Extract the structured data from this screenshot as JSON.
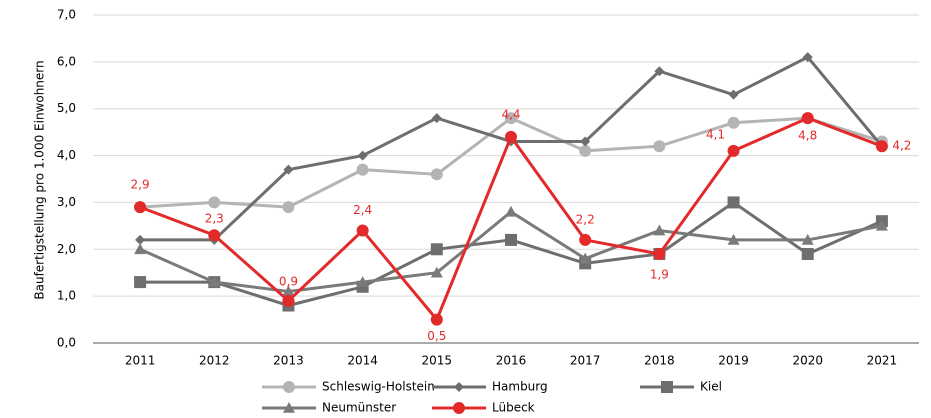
{
  "chart_data": {
    "type": "line",
    "y_label": "Baufertigstellung pro 1.000 Einwohnern",
    "categories": [
      "2011",
      "2012",
      "2013",
      "2014",
      "2015",
      "2016",
      "2017",
      "2018",
      "2019",
      "2020",
      "2021"
    ],
    "ylim": [
      0,
      7
    ],
    "yticks": [
      {
        "value": 0,
        "label": "0,0"
      },
      {
        "value": 1,
        "label": "1,0"
      },
      {
        "value": 2,
        "label": "2,0"
      },
      {
        "value": 3,
        "label": "3,0"
      },
      {
        "value": 4,
        "label": "4,0"
      },
      {
        "value": 5,
        "label": "5,0"
      },
      {
        "value": 6,
        "label": "6,0"
      },
      {
        "value": 7,
        "label": "7,0"
      }
    ],
    "grid": true,
    "series": [
      {
        "name": "Schleswig-Holstein",
        "color": "#b4b4b4",
        "marker": "circle",
        "values": [
          2.9,
          3.0,
          2.9,
          3.7,
          3.6,
          4.8,
          4.1,
          4.2,
          4.7,
          4.8,
          4.3
        ]
      },
      {
        "name": "Hamburg",
        "color": "#6e6e6e",
        "marker": "diamond",
        "values": [
          2.2,
          2.2,
          3.7,
          4.0,
          4.8,
          4.3,
          4.3,
          5.8,
          5.3,
          6.1,
          4.2
        ]
      },
      {
        "name": "Kiel",
        "color": "#6e6e6e",
        "marker": "square",
        "values": [
          1.3,
          1.3,
          0.8,
          1.2,
          2.0,
          2.2,
          1.7,
          1.9,
          3.0,
          1.9,
          2.6
        ]
      },
      {
        "name": "Neumünster",
        "color": "#7a7a7a",
        "marker": "triangle",
        "values": [
          2.0,
          1.3,
          1.1,
          1.3,
          1.5,
          2.8,
          1.8,
          2.4,
          2.2,
          2.2,
          2.5
        ]
      },
      {
        "name": "Lübeck",
        "color": "#e32a2a",
        "marker": "circle",
        "values": [
          2.9,
          2.3,
          0.9,
          2.4,
          0.5,
          4.4,
          2.2,
          1.9,
          4.1,
          4.8,
          4.2
        ],
        "value_labels": [
          "2,9",
          "2,3",
          "0,9",
          "2,4",
          "0,5",
          "4,4",
          "2,2",
          "1,9",
          "4,1",
          "4,8",
          "4,2"
        ]
      }
    ]
  }
}
